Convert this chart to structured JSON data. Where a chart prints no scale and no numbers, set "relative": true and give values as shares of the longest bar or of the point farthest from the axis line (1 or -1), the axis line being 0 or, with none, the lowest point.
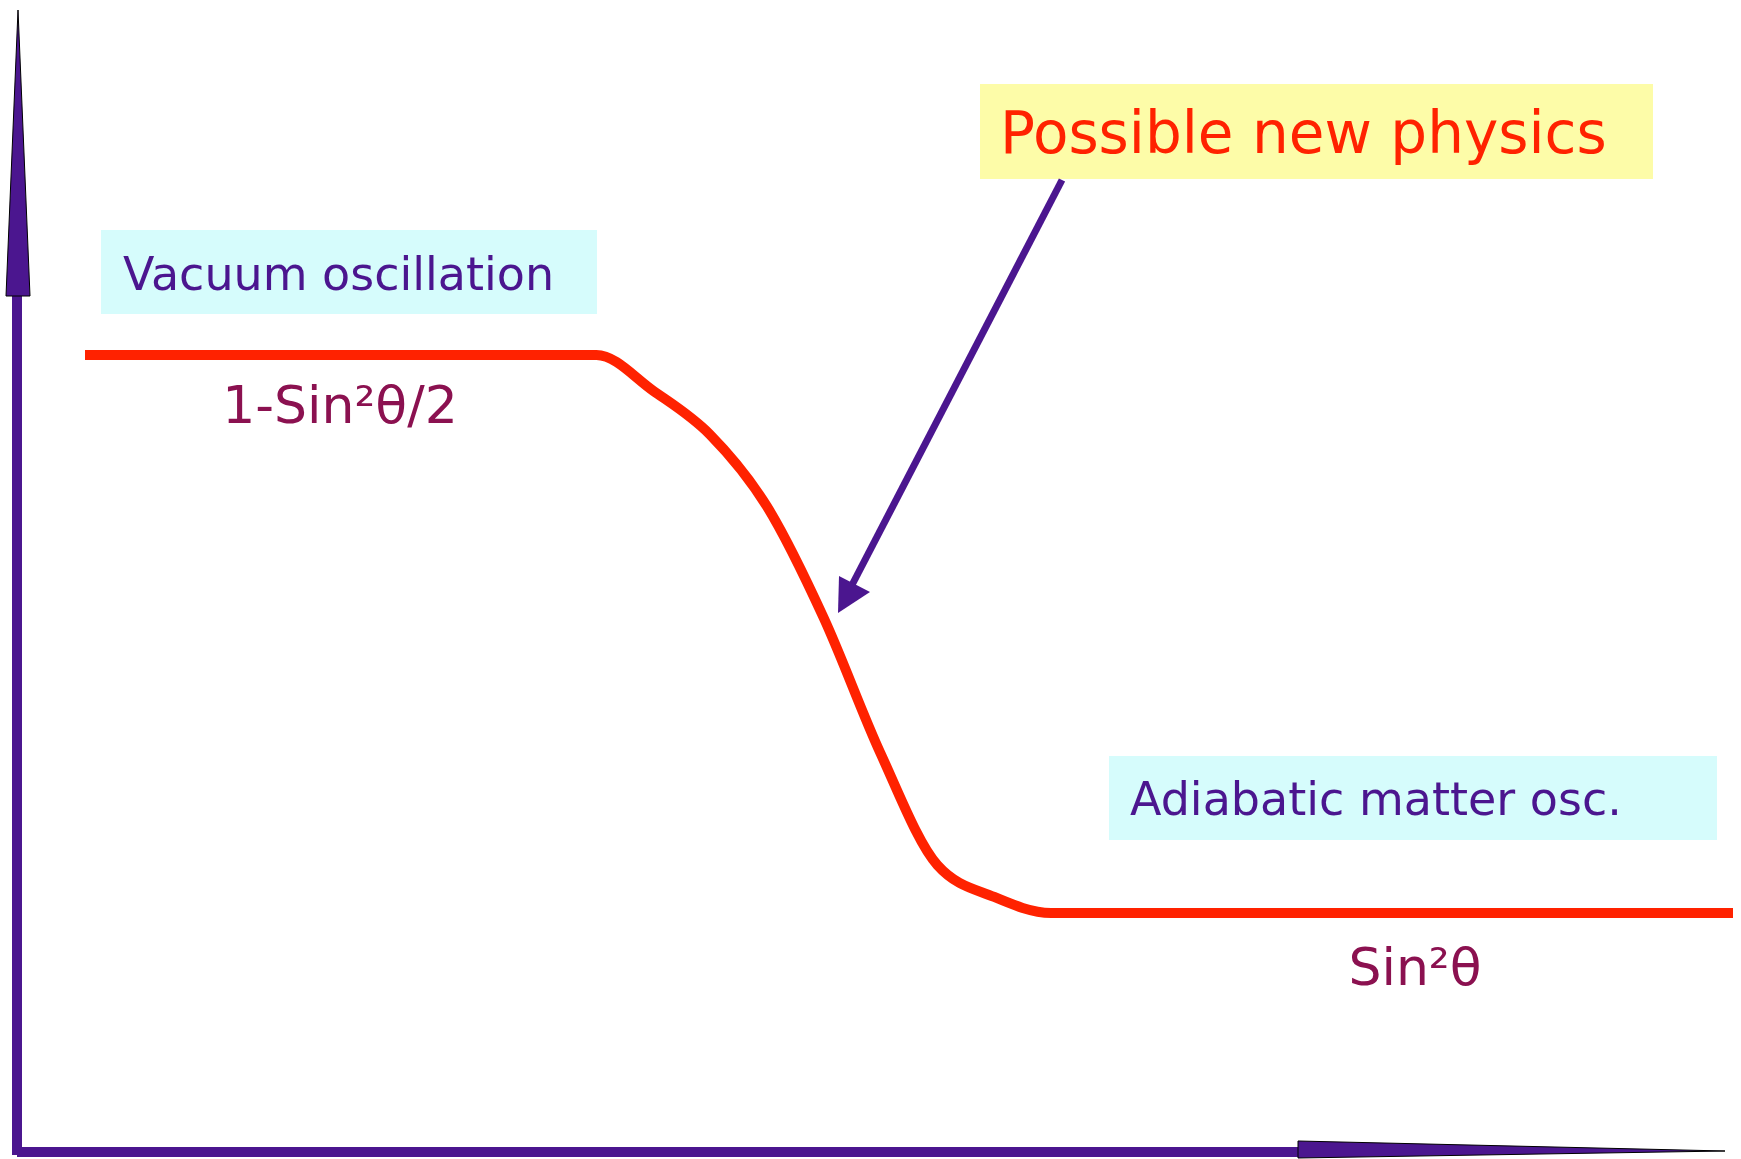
{
  "chart_data": {
    "type": "line",
    "relative": true,
    "categories": [
      null,
      null,
      null,
      null,
      null,
      null,
      null,
      null,
      null,
      null,
      null,
      null,
      null,
      null,
      null,
      null,
      null,
      null,
      null,
      null,
      null,
      null,
      null,
      null,
      null,
      null,
      null,
      null,
      null,
      null
    ],
    "series": [
      {
        "color": "#ff2200",
        "values": [
          1,
          1,
          1,
          1,
          1,
          1,
          1,
          1,
          1,
          1,
          0.955,
          0.9,
          0.81,
          0.67,
          0.5,
          0.36,
          0.32,
          0.3,
          0.3,
          0.3,
          0.3,
          0.3,
          0.3,
          0.3,
          0.3,
          0.3,
          0.3,
          0.3,
          0.3,
          0.3
        ]
      }
    ],
    "annotations": [
      "Vacuum oscillation",
      "1-Sin²θ/2",
      "Possible new physics",
      "Adiabatic matter osc.",
      "Sin²θ"
    ]
  }
}
